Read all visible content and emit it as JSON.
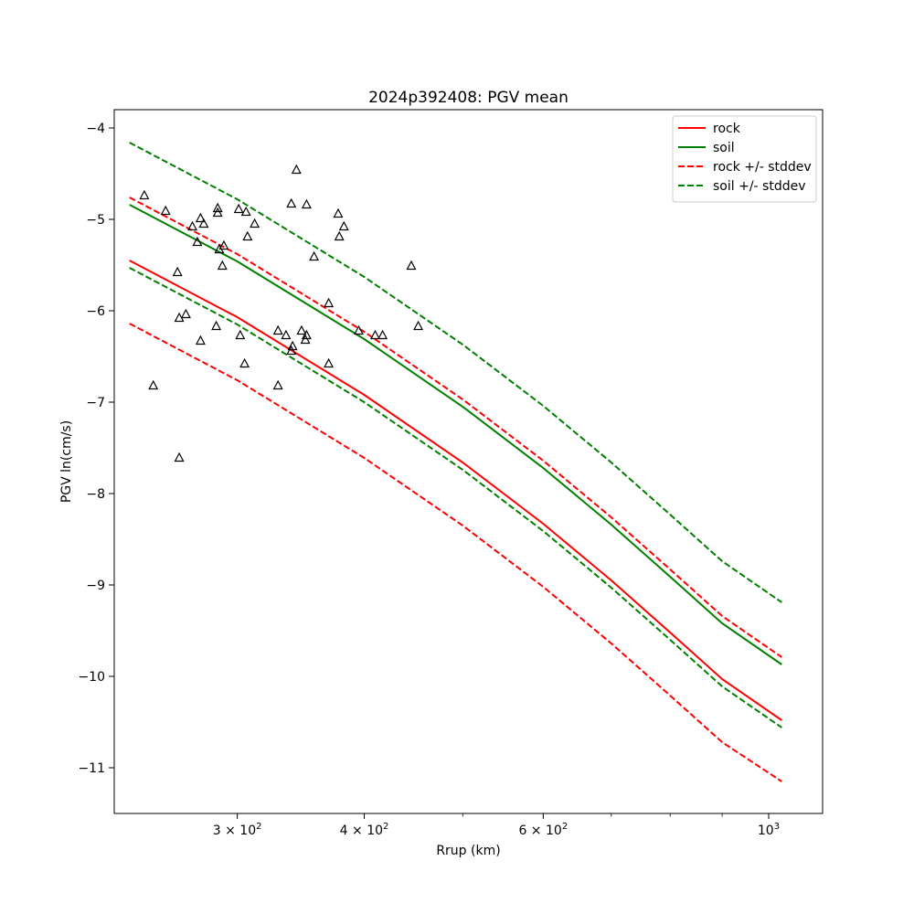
{
  "chart_data": {
    "type": "line",
    "title": "2024p392408: PGV mean",
    "xlabel": "Rrup (km)",
    "ylabel": "PGV ln(cm/s)",
    "xscale": "log",
    "xlim": [
      227,
      1130
    ],
    "ylim": [
      -11.5,
      -3.8
    ],
    "grid": false,
    "legend_position": "top-right",
    "x_ticks": [
      {
        "value": 300,
        "label": "3 × 10",
        "exp": "2"
      },
      {
        "value": 400,
        "label": "4 × 10",
        "exp": "2"
      },
      {
        "value": 600,
        "label": "6 × 10",
        "exp": "2"
      },
      {
        "value": 1000,
        "label": "10",
        "exp": "3"
      }
    ],
    "x_minor_ticks": [
      500,
      700,
      800,
      900
    ],
    "y_ticks": [
      {
        "value": -4,
        "label": "−4"
      },
      {
        "value": -5,
        "label": "−5"
      },
      {
        "value": -6,
        "label": "−6"
      },
      {
        "value": -7,
        "label": "−7"
      },
      {
        "value": -8,
        "label": "−8"
      },
      {
        "value": -9,
        "label": "−9"
      },
      {
        "value": -10,
        "label": "−10"
      },
      {
        "value": -11,
        "label": "−11"
      }
    ],
    "x": [
      235,
      300,
      400,
      500,
      600,
      700,
      800,
      900,
      1030
    ],
    "series": [
      {
        "name": "rock",
        "style": "solid",
        "color": "#ff0000",
        "values": [
          -5.45,
          -6.07,
          -6.92,
          -7.66,
          -8.33,
          -8.95,
          -9.52,
          -10.03,
          -10.48
        ]
      },
      {
        "name": "soil",
        "style": "solid",
        "color": "#008000",
        "values": [
          -4.84,
          -5.46,
          -6.31,
          -7.05,
          -7.72,
          -8.34,
          -8.91,
          -9.42,
          -9.87
        ]
      },
      {
        "name": "rock +/- stddev",
        "style": "dashed",
        "color": "#ff0000",
        "values": [
          -4.76,
          -5.38,
          -6.23,
          -6.97,
          -7.64,
          -8.26,
          -8.83,
          -9.34,
          -9.79
        ]
      },
      {
        "name": "rock +/- stddev",
        "style": "dashed",
        "color": "#ff0000",
        "legend": false,
        "values": [
          -6.14,
          -6.76,
          -7.61,
          -8.35,
          -9.02,
          -9.64,
          -10.21,
          -10.72,
          -11.15
        ]
      },
      {
        "name": "soil +/- stddev",
        "style": "dashed",
        "color": "#008000",
        "values": [
          -4.16,
          -4.78,
          -5.63,
          -6.37,
          -7.04,
          -7.66,
          -8.23,
          -8.74,
          -9.19
        ]
      },
      {
        "name": "soil +/- stddev",
        "style": "dashed",
        "color": "#008000",
        "legend": false,
        "values": [
          -5.53,
          -6.15,
          -7.0,
          -7.74,
          -8.41,
          -9.03,
          -9.6,
          -10.11,
          -10.56
        ]
      }
    ],
    "observations": {
      "marker": "triangle",
      "color": "#000000",
      "points": [
        [
          243,
          -4.74
        ],
        [
          248,
          -6.82
        ],
        [
          255,
          -4.91
        ],
        [
          262,
          -5.58
        ],
        [
          263,
          -6.08
        ],
        [
          263,
          -7.61
        ],
        [
          267,
          -6.04
        ],
        [
          271,
          -5.08
        ],
        [
          274,
          -5.25
        ],
        [
          276,
          -4.99
        ],
        [
          276,
          -6.33
        ],
        [
          278,
          -5.05
        ],
        [
          286,
          -6.17
        ],
        [
          287,
          -4.93
        ],
        [
          287,
          -4.88
        ],
        [
          288,
          -5.33
        ],
        [
          290,
          -5.51
        ],
        [
          291,
          -5.29
        ],
        [
          301,
          -4.89
        ],
        [
          302,
          -6.27
        ],
        [
          305,
          -6.58
        ],
        [
          306,
          -4.92
        ],
        [
          307,
          -5.19
        ],
        [
          312,
          -5.05
        ],
        [
          329,
          -6.82
        ],
        [
          329,
          -6.22
        ],
        [
          335,
          -6.27
        ],
        [
          339,
          -6.44
        ],
        [
          339,
          -4.83
        ],
        [
          340,
          -6.39
        ],
        [
          343,
          -4.46
        ],
        [
          347,
          -6.22
        ],
        [
          350,
          -6.32
        ],
        [
          351,
          -6.27
        ],
        [
          351,
          -4.84
        ],
        [
          357,
          -5.41
        ],
        [
          369,
          -6.58
        ],
        [
          369,
          -5.92
        ],
        [
          377,
          -4.94
        ],
        [
          378,
          -5.19
        ],
        [
          382,
          -5.08
        ],
        [
          395,
          -6.22
        ],
        [
          410,
          -6.27
        ],
        [
          417,
          -6.27
        ],
        [
          445,
          -5.51
        ],
        [
          452,
          -6.17
        ]
      ]
    }
  }
}
